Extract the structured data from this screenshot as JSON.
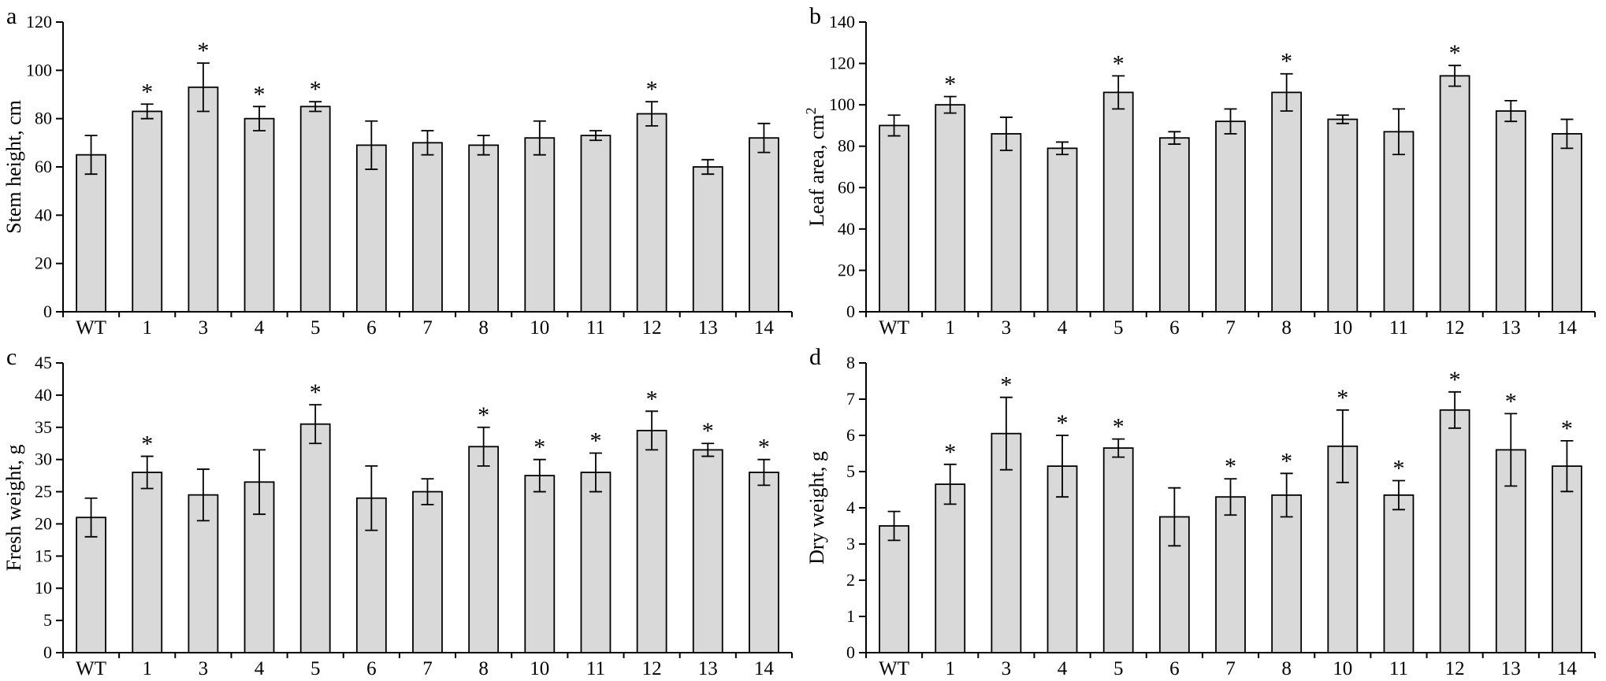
{
  "figure": {
    "background": "#ffffff",
    "bar_fill": "#d9d9d9",
    "line_color": "#000000",
    "significance_marker": "*"
  },
  "chart_data": [
    {
      "type": "bar",
      "panel": "a",
      "ylabel": "Stem height, cm",
      "ylabel_superscript": "",
      "ylim": [
        0,
        120
      ],
      "ytick_step": 20,
      "grid": false,
      "legend": "none",
      "categories": [
        "WT",
        "1",
        "3",
        "4",
        "5",
        "6",
        "7",
        "8",
        "10",
        "11",
        "12",
        "13",
        "14"
      ],
      "values": [
        65,
        83,
        93,
        80,
        85,
        69,
        70,
        69,
        72,
        73,
        82,
        60,
        72
      ],
      "errors": [
        8,
        3,
        10,
        5,
        2,
        10,
        5,
        4,
        7,
        2,
        5,
        3,
        6
      ],
      "significant": [
        false,
        true,
        true,
        true,
        true,
        false,
        false,
        false,
        false,
        false,
        true,
        false,
        false
      ]
    },
    {
      "type": "bar",
      "panel": "b",
      "ylabel": "Leaf area, cm",
      "ylabel_superscript": "2",
      "ylim": [
        0,
        140
      ],
      "ytick_step": 20,
      "grid": false,
      "legend": "none",
      "categories": [
        "WT",
        "1",
        "3",
        "4",
        "5",
        "6",
        "7",
        "8",
        "10",
        "11",
        "12",
        "13",
        "14"
      ],
      "values": [
        90,
        100,
        86,
        79,
        106,
        84,
        92,
        106,
        93,
        87,
        114,
        97,
        86
      ],
      "errors": [
        5,
        4,
        8,
        3,
        8,
        3,
        6,
        9,
        2,
        11,
        5,
        5,
        7
      ],
      "significant": [
        false,
        true,
        false,
        false,
        true,
        false,
        false,
        true,
        false,
        false,
        true,
        false,
        false
      ]
    },
    {
      "type": "bar",
      "panel": "c",
      "ylabel": "Fresh weight, g",
      "ylabel_superscript": "",
      "ylim": [
        0,
        45
      ],
      "ytick_step": 5,
      "grid": false,
      "legend": "none",
      "categories": [
        "WT",
        "1",
        "3",
        "4",
        "5",
        "6",
        "7",
        "8",
        "10",
        "11",
        "12",
        "13",
        "14"
      ],
      "values": [
        21,
        28,
        24.5,
        26.5,
        35.5,
        24,
        25,
        32,
        27.5,
        28,
        34.5,
        31.5,
        28
      ],
      "errors": [
        3,
        2.5,
        4,
        5,
        3,
        5,
        2,
        3,
        2.5,
        3,
        3,
        1,
        2
      ],
      "significant": [
        false,
        true,
        false,
        false,
        true,
        false,
        false,
        true,
        true,
        true,
        true,
        true,
        true
      ]
    },
    {
      "type": "bar",
      "panel": "d",
      "ylabel": "Dry weight, g",
      "ylabel_superscript": "",
      "ylim": [
        0,
        8
      ],
      "ytick_step": 1,
      "grid": false,
      "legend": "none",
      "categories": [
        "WT",
        "1",
        "3",
        "4",
        "5",
        "6",
        "7",
        "8",
        "10",
        "11",
        "12",
        "13",
        "14"
      ],
      "values": [
        3.5,
        4.65,
        6.05,
        5.15,
        5.65,
        3.75,
        4.3,
        4.35,
        5.7,
        4.35,
        6.7,
        5.6,
        5.15
      ],
      "errors": [
        0.4,
        0.55,
        1.0,
        0.85,
        0.25,
        0.8,
        0.5,
        0.6,
        1.0,
        0.4,
        0.5,
        1.0,
        0.7
      ],
      "significant": [
        false,
        true,
        true,
        true,
        true,
        false,
        true,
        true,
        true,
        true,
        true,
        true,
        true
      ]
    }
  ]
}
